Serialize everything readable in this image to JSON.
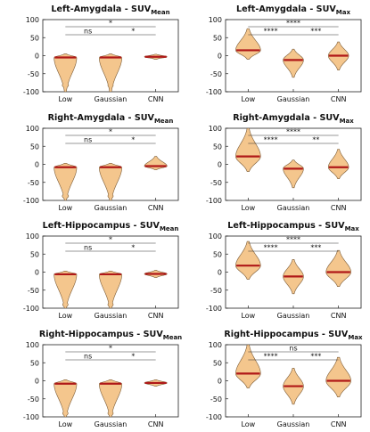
{
  "colors": {
    "violin_fill": "#f4c68d",
    "violin_edge": "#7a5a35",
    "median": "#b01818",
    "axis": "#222222",
    "bracket": "#333333"
  },
  "chart_data": [
    {
      "type": "violin",
      "title": "Left-Amygdala - SUV",
      "title_subscript": "Mean",
      "categories": [
        "Low",
        "Gaussian",
        "CNN"
      ],
      "ylim": [
        -100,
        100
      ],
      "yticks": [
        "100",
        "50",
        "0",
        "-50",
        "-100"
      ],
      "violins": [
        {
          "median": -5,
          "min": -100,
          "max": 5,
          "body_width": 0.5,
          "tail_blob": {
            "y": -82,
            "width": 0.14
          }
        },
        {
          "median": -5,
          "min": -100,
          "max": 5,
          "body_width": 0.5,
          "tail_blob": {
            "y": -82,
            "width": 0.12
          }
        },
        {
          "median": -3,
          "min": -10,
          "max": 4,
          "body_width": 0.5
        }
      ],
      "comparisons": [
        {
          "from": "Low",
          "to": "CNN",
          "label": "*",
          "level": 2
        },
        {
          "from": "Low",
          "to": "Gaussian",
          "label": "ns",
          "level": 1
        },
        {
          "from": "Gaussian",
          "to": "CNN",
          "label": "*",
          "level": 1
        }
      ]
    },
    {
      "type": "violin",
      "title": "Left-Amygdala - SUV",
      "title_subscript": "Max",
      "categories": [
        "Low",
        "Gaussian",
        "CNN"
      ],
      "ylim": [
        -100,
        100
      ],
      "yticks": [
        "100",
        "50",
        "0",
        "-50",
        "-100"
      ],
      "violins": [
        {
          "median": 15,
          "min": -10,
          "max": 75,
          "body_width": 0.55
        },
        {
          "median": -12,
          "min": -60,
          "max": 18,
          "body_width": 0.45
        },
        {
          "median": 0,
          "min": -40,
          "max": 38,
          "body_width": 0.45
        }
      ],
      "comparisons": [
        {
          "from": "Low",
          "to": "CNN",
          "label": "****",
          "level": 2
        },
        {
          "from": "Low",
          "to": "Gaussian",
          "label": "****",
          "level": 1
        },
        {
          "from": "Gaussian",
          "to": "CNN",
          "label": "***",
          "level": 1
        }
      ]
    },
    {
      "type": "violin",
      "title": "Right-Amygdala - SUV",
      "title_subscript": "Mean",
      "categories": [
        "Low",
        "Gaussian",
        "CNN"
      ],
      "ylim": [
        -100,
        100
      ],
      "yticks": [
        "100",
        "50",
        "0",
        "-50",
        "-100"
      ],
      "violins": [
        {
          "median": -8,
          "min": -100,
          "max": 3,
          "body_width": 0.5,
          "tail_blob": {
            "y": -88,
            "width": 0.14
          }
        },
        {
          "median": -8,
          "min": -100,
          "max": 3,
          "body_width": 0.5,
          "tail_blob": {
            "y": -88,
            "width": 0.12
          }
        },
        {
          "median": -5,
          "min": -15,
          "max": 22,
          "body_width": 0.5
        }
      ],
      "comparisons": [
        {
          "from": "Low",
          "to": "CNN",
          "label": "*",
          "level": 2
        },
        {
          "from": "Low",
          "to": "Gaussian",
          "label": "ns",
          "level": 1
        },
        {
          "from": "Gaussian",
          "to": "CNN",
          "label": "*",
          "level": 1
        }
      ]
    },
    {
      "type": "violin",
      "title": "Right-Amygdala - SUV",
      "title_subscript": "Max",
      "categories": [
        "Low",
        "Gaussian",
        "CNN"
      ],
      "ylim": [
        -100,
        100
      ],
      "yticks": [
        "100",
        "50",
        "0",
        "-50",
        "-100"
      ],
      "violins": [
        {
          "median": 22,
          "min": -20,
          "max": 100,
          "body_width": 0.55
        },
        {
          "median": -12,
          "min": -65,
          "max": 12,
          "body_width": 0.45
        },
        {
          "median": -8,
          "min": -40,
          "max": 42,
          "body_width": 0.45
        }
      ],
      "comparisons": [
        {
          "from": "Low",
          "to": "CNN",
          "label": "****",
          "level": 2
        },
        {
          "from": "Low",
          "to": "Gaussian",
          "label": "****",
          "level": 1
        },
        {
          "from": "Gaussian",
          "to": "CNN",
          "label": "**",
          "level": 1
        }
      ]
    },
    {
      "type": "violin",
      "title": "Left-Hippocampus - SUV",
      "title_subscript": "Mean",
      "categories": [
        "Low",
        "Gaussian",
        "CNN"
      ],
      "ylim": [
        -100,
        100
      ],
      "yticks": [
        "100",
        "50",
        "0",
        "-50",
        "-100"
      ],
      "violins": [
        {
          "median": -6,
          "min": -100,
          "max": 3,
          "body_width": 0.5,
          "tail_blob": {
            "y": -90,
            "width": 0.12
          }
        },
        {
          "median": -6,
          "min": -100,
          "max": 3,
          "body_width": 0.5,
          "tail_blob": {
            "y": -90,
            "width": 0.12
          }
        },
        {
          "median": -5,
          "min": -15,
          "max": 5,
          "body_width": 0.5
        }
      ],
      "comparisons": [
        {
          "from": "Low",
          "to": "CNN",
          "label": "*",
          "level": 2
        },
        {
          "from": "Low",
          "to": "Gaussian",
          "label": "ns",
          "level": 1
        },
        {
          "from": "Gaussian",
          "to": "CNN",
          "label": "*",
          "level": 1
        }
      ]
    },
    {
      "type": "violin",
      "title": "Left-Hippocampus - SUV",
      "title_subscript": "Max",
      "categories": [
        "Low",
        "Gaussian",
        "CNN"
      ],
      "ylim": [
        -100,
        100
      ],
      "yticks": [
        "100",
        "50",
        "0",
        "-50",
        "-100"
      ],
      "violins": [
        {
          "median": 18,
          "min": -20,
          "max": 85,
          "body_width": 0.55
        },
        {
          "median": -12,
          "min": -60,
          "max": 35,
          "body_width": 0.45
        },
        {
          "median": 0,
          "min": -40,
          "max": 60,
          "body_width": 0.55
        }
      ],
      "comparisons": [
        {
          "from": "Low",
          "to": "CNN",
          "label": "****",
          "level": 2
        },
        {
          "from": "Low",
          "to": "Gaussian",
          "label": "****",
          "level": 1
        },
        {
          "from": "Gaussian",
          "to": "CNN",
          "label": "***",
          "level": 1
        }
      ]
    },
    {
      "type": "violin",
      "title": "Right-Hippocampus - SUV",
      "title_subscript": "Mean",
      "categories": [
        "Low",
        "Gaussian",
        "CNN"
      ],
      "ylim": [
        -100,
        100
      ],
      "yticks": [
        "100",
        "50",
        "0",
        "-50",
        "-100"
      ],
      "violins": [
        {
          "median": -8,
          "min": -100,
          "max": 3,
          "body_width": 0.5,
          "tail_blob": {
            "y": -90,
            "width": 0.12
          }
        },
        {
          "median": -8,
          "min": -100,
          "max": 3,
          "body_width": 0.5,
          "tail_blob": {
            "y": -90,
            "width": 0.12
          }
        },
        {
          "median": -6,
          "min": -15,
          "max": 3,
          "body_width": 0.5
        }
      ],
      "comparisons": [
        {
          "from": "Low",
          "to": "CNN",
          "label": "*",
          "level": 2
        },
        {
          "from": "Low",
          "to": "Gaussian",
          "label": "ns",
          "level": 1
        },
        {
          "from": "Gaussian",
          "to": "CNN",
          "label": "*",
          "level": 1
        }
      ]
    },
    {
      "type": "violin",
      "title": "Right-Hippocampus - SUV",
      "title_subscript": "Max",
      "categories": [
        "Low",
        "Gaussian",
        "CNN"
      ],
      "ylim": [
        -100,
        100
      ],
      "yticks": [
        "100",
        "50",
        "0",
        "-50",
        "-100"
      ],
      "violins": [
        {
          "median": 20,
          "min": -20,
          "max": 100,
          "body_width": 0.55
        },
        {
          "median": -15,
          "min": -65,
          "max": 35,
          "body_width": 0.45
        },
        {
          "median": 0,
          "min": -45,
          "max": 65,
          "body_width": 0.55
        }
      ],
      "comparisons": [
        {
          "from": "Low",
          "to": "CNN",
          "label": "ns",
          "level": 2
        },
        {
          "from": "Low",
          "to": "Gaussian",
          "label": "****",
          "level": 1
        },
        {
          "from": "Gaussian",
          "to": "CNN",
          "label": "***",
          "level": 1
        }
      ]
    }
  ]
}
